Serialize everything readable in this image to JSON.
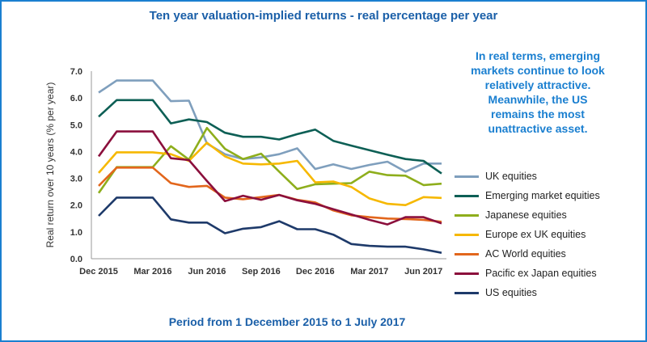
{
  "title": "Ten year valuation-implied returns - real percentage per year",
  "annotation": [
    "In real terms, emerging",
    "markets continue to look",
    "relatively attractive.",
    "Meanwhile, the US",
    "remains the most",
    "unattractive asset."
  ],
  "footer": "Period from 1 December 2015 to 1 July 2017",
  "chart_data": {
    "type": "line",
    "ylabel": "Real return over 10 years (% per year)",
    "ylim": [
      0,
      7
    ],
    "yticks": [
      "0.0",
      "1.0",
      "2.0",
      "3.0",
      "4.0",
      "5.0",
      "6.0",
      "7.0"
    ],
    "xticks": [
      {
        "index": 0,
        "label": "Dec 2015"
      },
      {
        "index": 3,
        "label": "Mar 2016"
      },
      {
        "index": 6,
        "label": "Jun 2016"
      },
      {
        "index": 9,
        "label": "Sep 2016"
      },
      {
        "index": 12,
        "label": "Dec 2016"
      },
      {
        "index": 15,
        "label": "Mar 2017"
      },
      {
        "index": 18,
        "label": "Jun 2017"
      }
    ],
    "n_points": 20,
    "grid": false,
    "legend_position": "right",
    "series": [
      {
        "name": "UK equities",
        "color": "#7f9fbd",
        "values": [
          6.2,
          6.65,
          6.65,
          6.65,
          5.88,
          5.9,
          4.3,
          3.9,
          3.72,
          3.78,
          3.9,
          4.12,
          3.35,
          3.52,
          3.35,
          3.5,
          3.62,
          3.25,
          3.55,
          3.55
        ]
      },
      {
        "name": "Emerging market equities",
        "color": "#0d5f55",
        "values": [
          5.3,
          5.92,
          5.92,
          5.92,
          5.05,
          5.2,
          5.1,
          4.7,
          4.55,
          4.55,
          4.45,
          4.65,
          4.82,
          4.4,
          4.22,
          4.05,
          3.88,
          3.72,
          3.65,
          3.18
        ]
      },
      {
        "name": "Japanese equities",
        "color": "#8eae1c",
        "values": [
          2.45,
          3.42,
          3.42,
          3.42,
          4.2,
          3.7,
          4.88,
          4.1,
          3.72,
          3.92,
          3.25,
          2.6,
          2.78,
          2.8,
          2.82,
          3.25,
          3.12,
          3.1,
          2.75,
          2.8
        ]
      },
      {
        "name": "Europe ex UK equities",
        "color": "#f6b800",
        "values": [
          3.2,
          3.97,
          3.97,
          3.97,
          3.9,
          3.65,
          4.33,
          3.82,
          3.55,
          3.52,
          3.55,
          3.65,
          2.85,
          2.88,
          2.68,
          2.25,
          2.05,
          2.0,
          2.3,
          2.27
        ]
      },
      {
        "name": "AC World equities",
        "color": "#e2661c",
        "values": [
          2.72,
          3.4,
          3.4,
          3.4,
          2.82,
          2.68,
          2.72,
          2.28,
          2.22,
          2.3,
          2.38,
          2.2,
          2.1,
          1.8,
          1.62,
          1.55,
          1.5,
          1.48,
          1.45,
          1.38
        ]
      },
      {
        "name": "Pacific ex Japan equities",
        "color": "#8b0f3c",
        "values": [
          3.82,
          4.75,
          4.75,
          4.75,
          3.75,
          3.68,
          2.9,
          2.15,
          2.35,
          2.2,
          2.38,
          2.18,
          2.05,
          1.85,
          1.65,
          1.45,
          1.28,
          1.55,
          1.55,
          1.32
        ]
      },
      {
        "name": "US equities",
        "color": "#1e3a6a",
        "values": [
          1.6,
          2.28,
          2.28,
          2.28,
          1.47,
          1.35,
          1.35,
          0.95,
          1.12,
          1.18,
          1.4,
          1.1,
          1.1,
          0.9,
          0.55,
          0.48,
          0.45,
          0.45,
          0.35,
          0.22
        ]
      }
    ]
  }
}
